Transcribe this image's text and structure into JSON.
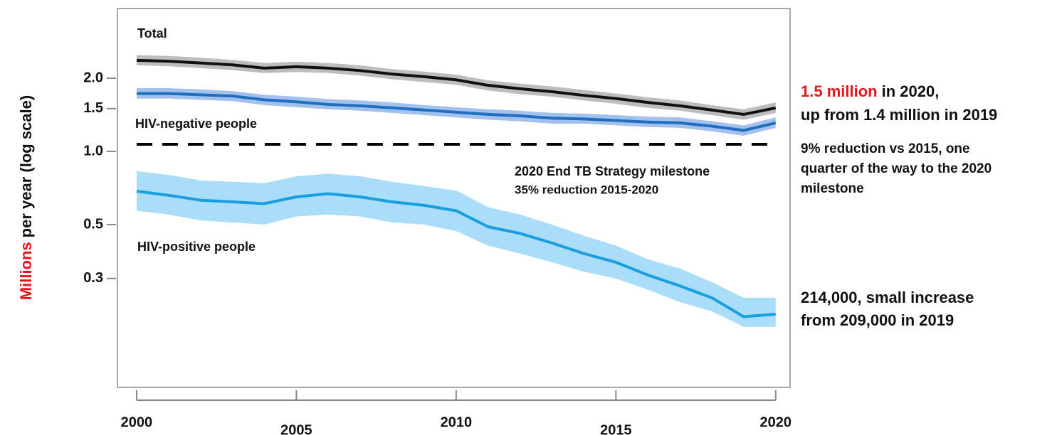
{
  "chart_data": {
    "type": "line",
    "y_label": [
      "Millions",
      "per year (log scale)"
    ],
    "x": [
      2000,
      2001,
      2002,
      2003,
      2004,
      2005,
      2006,
      2007,
      2008,
      2009,
      2010,
      2011,
      2012,
      2013,
      2014,
      2015,
      2016,
      2017,
      2018,
      2019,
      2020
    ],
    "xlim": [
      1999.4,
      2020.45
    ],
    "xticks": [
      2000,
      2005,
      2010,
      2015,
      2020
    ],
    "ylim": [
      0.107,
      3.87
    ],
    "log_scale": true,
    "yticks": [
      {
        "value": 0.3,
        "label": "0.3"
      },
      {
        "value": 0.5,
        "label": "0.5"
      },
      {
        "value": 1,
        "label": "1.0"
      },
      {
        "value": 1.5,
        "label": "1.5"
      },
      {
        "value": 2,
        "label": "2.0"
      }
    ],
    "series": [
      {
        "name": "Total",
        "color": "#111111",
        "band_color": "#bdbdbd",
        "values": [
          2.37,
          2.35,
          2.31,
          2.27,
          2.2,
          2.23,
          2.2,
          2.15,
          2.08,
          2.03,
          1.97,
          1.87,
          1.81,
          1.76,
          1.7,
          1.65,
          1.59,
          1.54,
          1.48,
          1.42,
          1.51
        ],
        "upper": [
          2.49,
          2.47,
          2.43,
          2.38,
          2.31,
          2.34,
          2.31,
          2.26,
          2.18,
          2.13,
          2.07,
          1.96,
          1.9,
          1.85,
          1.79,
          1.73,
          1.67,
          1.62,
          1.55,
          1.49,
          1.59
        ],
        "lower": [
          2.26,
          2.24,
          2.2,
          2.16,
          2.1,
          2.12,
          2.1,
          2.05,
          1.98,
          1.93,
          1.88,
          1.78,
          1.72,
          1.68,
          1.62,
          1.57,
          1.51,
          1.47,
          1.41,
          1.35,
          1.44
        ]
      },
      {
        "name": "HIV-negative people",
        "color": "#1f6fc0",
        "band_color": "#a3c1ec",
        "values": [
          1.73,
          1.73,
          1.71,
          1.69,
          1.63,
          1.6,
          1.56,
          1.54,
          1.51,
          1.48,
          1.45,
          1.42,
          1.4,
          1.37,
          1.36,
          1.34,
          1.32,
          1.31,
          1.27,
          1.22,
          1.31
        ],
        "upper": [
          1.82,
          1.82,
          1.8,
          1.77,
          1.71,
          1.68,
          1.64,
          1.62,
          1.59,
          1.55,
          1.52,
          1.49,
          1.47,
          1.44,
          1.43,
          1.41,
          1.39,
          1.38,
          1.33,
          1.28,
          1.38
        ],
        "lower": [
          1.65,
          1.65,
          1.63,
          1.61,
          1.55,
          1.52,
          1.49,
          1.47,
          1.44,
          1.41,
          1.38,
          1.35,
          1.33,
          1.3,
          1.3,
          1.28,
          1.26,
          1.25,
          1.21,
          1.16,
          1.25
        ]
      },
      {
        "name": "HIV-positive people",
        "color": "#1a9ee0",
        "band_color": "#a9ddf8",
        "values": [
          0.686,
          0.66,
          0.63,
          0.62,
          0.61,
          0.65,
          0.67,
          0.65,
          0.62,
          0.6,
          0.57,
          0.49,
          0.46,
          0.42,
          0.38,
          0.35,
          0.31,
          0.28,
          0.25,
          0.209,
          0.214
        ],
        "upper": [
          0.83,
          0.8,
          0.76,
          0.75,
          0.74,
          0.79,
          0.81,
          0.79,
          0.75,
          0.72,
          0.69,
          0.59,
          0.55,
          0.5,
          0.45,
          0.41,
          0.36,
          0.33,
          0.29,
          0.25,
          0.25
        ],
        "lower": [
          0.57,
          0.55,
          0.52,
          0.51,
          0.5,
          0.54,
          0.55,
          0.54,
          0.51,
          0.5,
          0.47,
          0.41,
          0.38,
          0.35,
          0.32,
          0.3,
          0.27,
          0.24,
          0.22,
          0.19,
          0.19
        ]
      }
    ],
    "reference_line": {
      "value": 1.07,
      "label": [
        "2020 End TB Strategy milestone",
        "35% reduction 2015-2020"
      ]
    },
    "notes": {
      "total": [
        "1.5 million",
        "in 2020,",
        "up from 1.4 million in 2019"
      ],
      "milestone": [
        "9% reduction vs 2015, one",
        "quarter of the way to the 2020",
        "milestone"
      ],
      "hiv_positive": [
        "214,000, small increase",
        "from 209,000 in 2019"
      ]
    }
  }
}
